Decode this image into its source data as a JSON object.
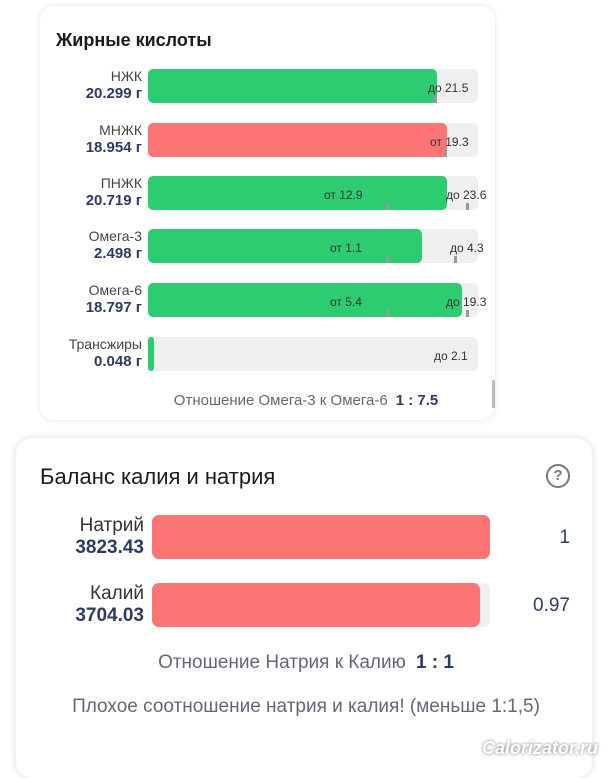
{
  "colors": {
    "green": "#2ecc71",
    "red": "#fc7474",
    "track": "#efefef"
  },
  "fatty": {
    "title": "Жирные кислоты",
    "rows": [
      {
        "label": "НЖК",
        "value": "20.299 г",
        "color": "#2ecc71",
        "fill": 0.876,
        "left_mark": "",
        "right_mark": "до 21.5"
      },
      {
        "label": "МНЖК",
        "value": "18.954 г",
        "color": "#fc7474",
        "fill": 0.906,
        "left_mark": "от 19.3",
        "right_mark": ""
      },
      {
        "label": "ПНЖК",
        "value": "20.719 г",
        "color": "#2ecc71",
        "fill": 0.906,
        "left_mark": "от 12.9",
        "right_mark": "до 23.6"
      },
      {
        "label": "Омега-3",
        "value": "2.498 г",
        "color": "#2ecc71",
        "fill": 0.83,
        "left_mark": "от 1.1",
        "right_mark": "до 4.3"
      },
      {
        "label": "Омега-6",
        "value": "18.797 г",
        "color": "#2ecc71",
        "fill": 0.952,
        "left_mark": "от 5.4",
        "right_mark": "до 19.3"
      },
      {
        "label": "Трансжиры",
        "value": "0.048 г",
        "color": "#2ecc71",
        "fill": 0.015,
        "left_mark": "",
        "right_mark": "до 2.1"
      }
    ],
    "ratio_label": "Отношение Омега-3 к Омега-6",
    "ratio_value": "1 : 7.5"
  },
  "balance": {
    "title": "Баланс калия и натрия",
    "help_icon": "?",
    "rows": [
      {
        "label": "Натрий",
        "value": "3823.43",
        "ratio": "1",
        "color": "#fc7474",
        "fill": 1.0
      },
      {
        "label": "Калий",
        "value": "3704.03",
        "ratio": "0.97",
        "color": "#fc7474",
        "fill": 0.97
      }
    ],
    "ratio_label": "Отношение Натрия к Калию",
    "ratio_value": "1 : 1",
    "warning": "Плохое соотношение натрия и калия! (меньше 1:1,5)"
  },
  "watermark": "Calorizator.ru"
}
